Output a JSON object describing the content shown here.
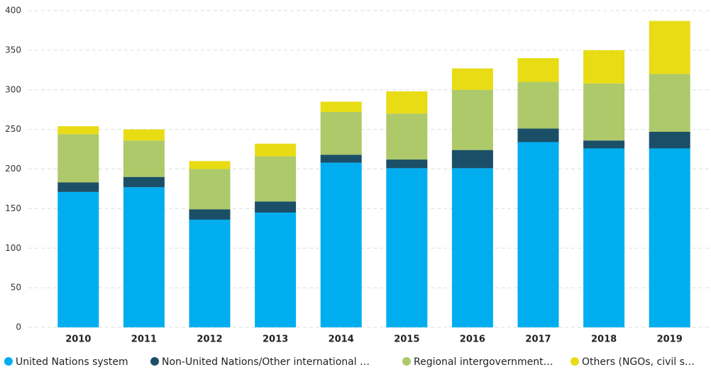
{
  "chart_data": {
    "type": "stacked_bar",
    "categories": [
      "2010",
      "2011",
      "2012",
      "2013",
      "2014",
      "2015",
      "2016",
      "2017",
      "2018",
      "2019"
    ],
    "series": [
      {
        "name": "United Nations system",
        "color": "#00aeef",
        "values": [
          171,
          177,
          136,
          145,
          208,
          201,
          201,
          234,
          226,
          226
        ]
      },
      {
        "name": "Non-United Nations/Other international …",
        "color": "#1b4f68",
        "values": [
          12,
          13,
          13,
          14,
          10,
          11,
          23,
          17,
          10,
          21
        ]
      },
      {
        "name": "Regional intergovernment…",
        "color": "#adc96a",
        "values": [
          61,
          46,
          51,
          57,
          54,
          58,
          76,
          59,
          72,
          73
        ]
      },
      {
        "name": "Others (NGOs, civil s…",
        "color": "#e8dc14",
        "values": [
          10,
          14,
          10,
          16,
          13,
          28,
          27,
          30,
          42,
          67
        ]
      }
    ],
    "ylim": [
      0,
      400
    ],
    "yticks": [
      0,
      50,
      100,
      150,
      200,
      250,
      300,
      350,
      400
    ],
    "grid": true,
    "legend": "bottom"
  }
}
